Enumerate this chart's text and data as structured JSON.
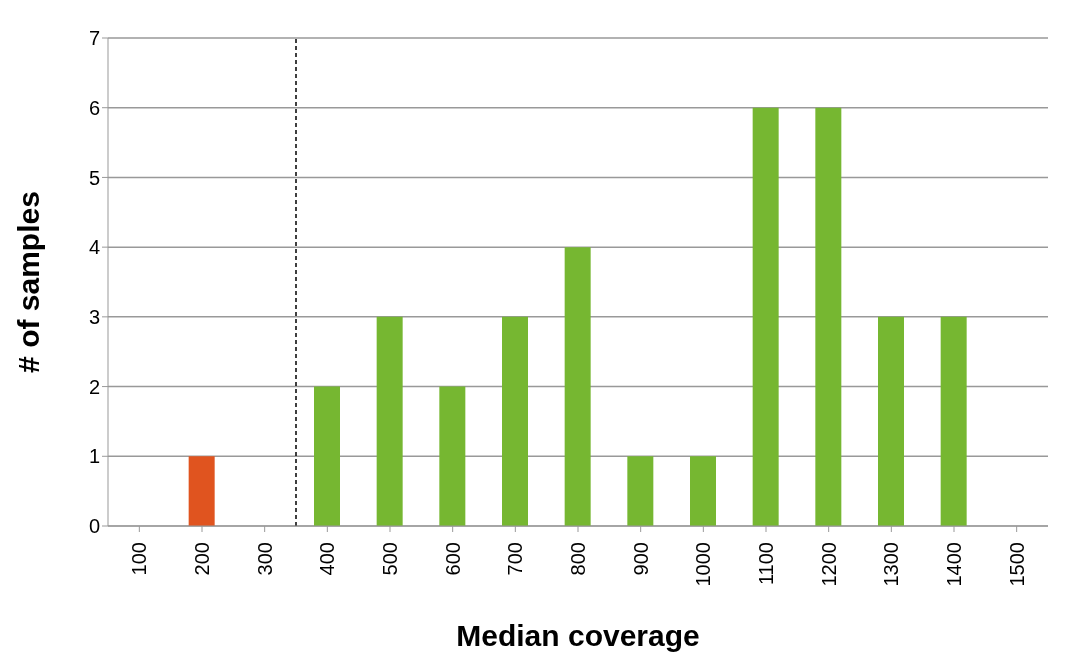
{
  "chart_data": {
    "type": "bar",
    "xlabel": "Median coverage",
    "ylabel": "# of samples",
    "x": [
      100,
      200,
      300,
      400,
      500,
      600,
      700,
      800,
      900,
      1000,
      1100,
      1200,
      1300,
      1400,
      1500
    ],
    "values": [
      0,
      1,
      0,
      2,
      3,
      2,
      3,
      4,
      1,
      1,
      6,
      6,
      3,
      3,
      0
    ],
    "colors": [
      "#76b731",
      "#e0541f",
      "#76b731",
      "#76b731",
      "#76b731",
      "#76b731",
      "#76b731",
      "#76b731",
      "#76b731",
      "#76b731",
      "#76b731",
      "#76b731",
      "#76b731",
      "#76b731",
      "#76b731"
    ],
    "xlim": [
      50,
      1550
    ],
    "xticks": [
      100,
      200,
      300,
      400,
      500,
      600,
      700,
      800,
      900,
      1000,
      1100,
      1200,
      1300,
      1400,
      1500
    ],
    "ylim": [
      0,
      7
    ],
    "yticks": [
      0,
      1,
      2,
      3,
      4,
      5,
      6,
      7
    ],
    "grid": "y",
    "ref_lines": [
      {
        "axis": "x",
        "value": 350,
        "color": "#000000",
        "line_style": "dashed"
      }
    ]
  }
}
